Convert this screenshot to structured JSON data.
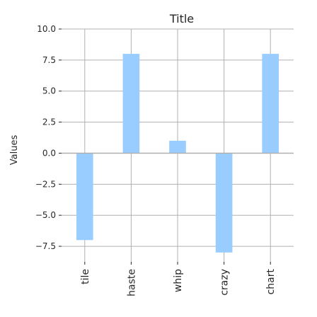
{
  "chart_data": {
    "type": "bar",
    "title": "Title",
    "xlabel": "",
    "ylabel": "Values",
    "categories": [
      "tile",
      "haste",
      "whip",
      "crazy",
      "chart"
    ],
    "values": [
      -7,
      8,
      1,
      -8,
      8
    ],
    "ylim": [
      -8.75,
      10.0
    ],
    "yticks": [
      -7.5,
      -5.0,
      -2.5,
      0.0,
      2.5,
      5.0,
      7.5,
      10.0
    ],
    "ytick_labels": [
      "−7.5",
      "−5.0",
      "−2.5",
      "0.0",
      "2.5",
      "5.0",
      "7.5",
      "10.0"
    ],
    "grid": true,
    "bar_color": "#99ccff",
    "grid_color": "#b0b0b0",
    "zero_line_color": "#b0b0b0"
  }
}
